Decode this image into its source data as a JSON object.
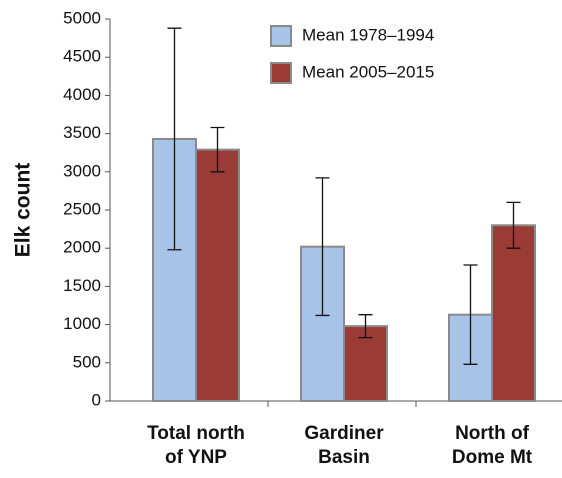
{
  "chart_data": {
    "type": "bar",
    "y_label": "Elk count",
    "categories": [
      [
        "Total north",
        "of YNP"
      ],
      [
        "Gardiner",
        "Basin"
      ],
      [
        "North of",
        "Dome Mt"
      ]
    ],
    "series": [
      {
        "name": "Mean 1978–1994",
        "color": "#a8c3e8",
        "values": [
          3430,
          2020,
          1130
        ],
        "errors": [
          1450,
          900,
          650
        ]
      },
      {
        "name": "Mean 2005–2015",
        "color": "#9a3b36",
        "values": [
          3290,
          980,
          2300
        ],
        "errors": [
          290,
          150,
          300
        ]
      }
    ],
    "ylim": [
      0,
      5000
    ],
    "yticks": [
      0,
      500,
      1000,
      1500,
      2000,
      2500,
      3000,
      3500,
      4000,
      4500,
      5000
    ],
    "grid": false,
    "legend": "top-right"
  }
}
